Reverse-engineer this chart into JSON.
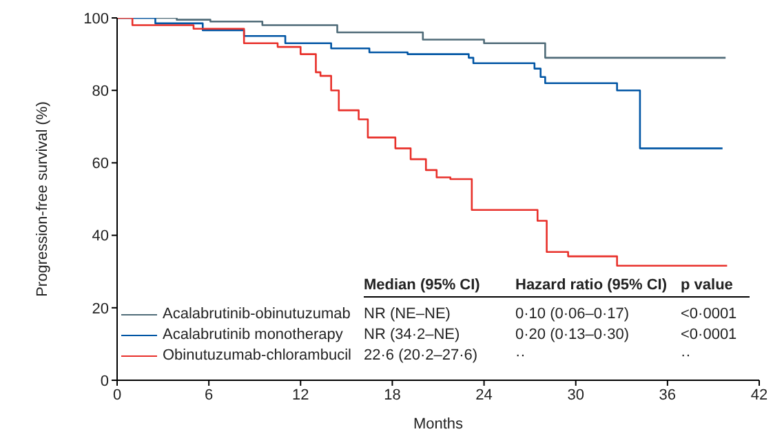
{
  "chart_data": {
    "type": "step",
    "xlabel": "Months",
    "ylabel": "Progression-free survival (%)",
    "xlim": [
      0,
      42
    ],
    "xticks": [
      0,
      6,
      12,
      18,
      24,
      30,
      36,
      42
    ],
    "ylim": [
      0,
      100
    ],
    "yticks": [
      0,
      20,
      40,
      60,
      80,
      100
    ],
    "grid": false,
    "legend": "bottom left",
    "marker": "none",
    "line_style": "solid",
    "series": [
      {
        "name": "Acalabrutinib-obinutuzumab",
        "color": "#4f6b78",
        "x": [
          0,
          3.9,
          6.1,
          9.5,
          14.4,
          20,
          24,
          28,
          39.8
        ],
        "values": [
          100,
          99.5,
          99,
          98,
          96,
          94,
          93,
          89,
          89
        ]
      },
      {
        "name": "Acalabrutinib monotherapy",
        "color": "#0055a4",
        "x": [
          0,
          2.5,
          5.6,
          8.3,
          11,
          14,
          16.5,
          19,
          23,
          23.3,
          27.3,
          27.7,
          28,
          32.7,
          34.2,
          39.6
        ],
        "values": [
          100,
          98.5,
          96.6,
          95,
          93,
          91.6,
          90.5,
          90,
          89,
          87.5,
          86,
          83.7,
          82,
          80,
          64,
          64
        ]
      },
      {
        "name": "Obinutuzumab-chlorambucil",
        "color": "#e8302a",
        "x": [
          0,
          1,
          5,
          8.3,
          10.5,
          12,
          13,
          13.3,
          14,
          14.5,
          15.8,
          16.4,
          18.2,
          19.2,
          20.2,
          20.9,
          21.8,
          23.2,
          27.5,
          28.1,
          29.5,
          32.7,
          39.9
        ],
        "values": [
          100,
          98,
          97,
          93,
          92,
          90,
          85,
          84,
          80,
          74.5,
          72,
          67,
          64,
          61,
          58,
          56,
          55.5,
          47,
          44,
          35.4,
          34.2,
          31.6,
          31.6
        ]
      }
    ],
    "annotations": [
      "Median (95% CI)",
      "Hazard ratio (95% CI)",
      "p value",
      "NR (NE–NE)",
      "0·10 (0·06–0·17)",
      "<0·0001",
      "NR (34·2–NE)",
      "0·20 (0·13–0·30)",
      "<0·0001",
      "22·6 (20·2–27·6)",
      "··",
      "··"
    ]
  }
}
